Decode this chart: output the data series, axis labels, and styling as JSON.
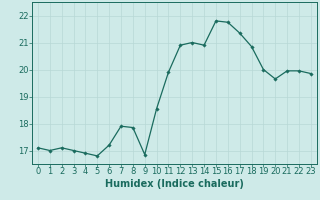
{
  "x": [
    0,
    1,
    2,
    3,
    4,
    5,
    6,
    7,
    8,
    9,
    10,
    11,
    12,
    13,
    14,
    15,
    16,
    17,
    18,
    19,
    20,
    21,
    22,
    23
  ],
  "y": [
    17.1,
    17.0,
    17.1,
    17.0,
    16.9,
    16.8,
    17.2,
    17.9,
    17.85,
    16.85,
    18.55,
    19.9,
    20.9,
    21.0,
    20.9,
    21.8,
    21.75,
    21.35,
    20.85,
    20.0,
    19.65,
    19.95,
    19.95,
    19.85
  ],
  "line_color": "#1a6b5e",
  "marker": "D",
  "marker_size": 1.8,
  "bg_color": "#ceeae8",
  "grid_color": "#b8d8d6",
  "axis_color": "#1a6b5e",
  "tick_color": "#1a6b5e",
  "xlabel": "Humidex (Indice chaleur)",
  "xlabel_fontsize": 7,
  "tick_fontsize": 6,
  "xlim": [
    -0.5,
    23.5
  ],
  "ylim": [
    16.5,
    22.5
  ],
  "yticks": [
    17,
    18,
    19,
    20,
    21,
    22
  ],
  "xticks": [
    0,
    1,
    2,
    3,
    4,
    5,
    6,
    7,
    8,
    9,
    10,
    11,
    12,
    13,
    14,
    15,
    16,
    17,
    18,
    19,
    20,
    21,
    22,
    23
  ]
}
